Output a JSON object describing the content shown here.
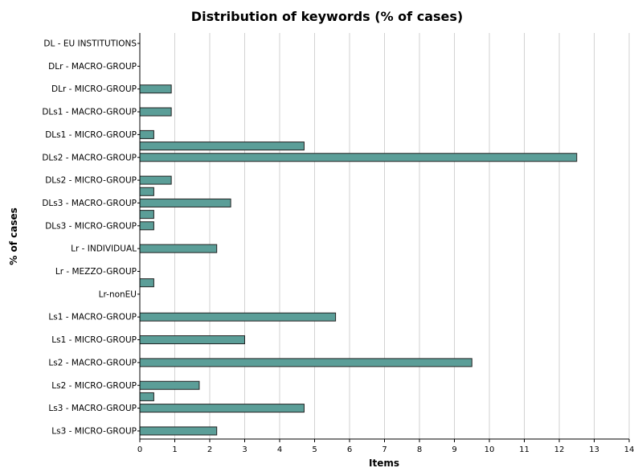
{
  "chart_data": {
    "type": "bar",
    "orientation": "horizontal",
    "title": "Distribution of keywords (% of cases)",
    "xlabel": "Items",
    "ylabel": "% of cases",
    "xlim": [
      0,
      14
    ],
    "xticks": [
      0,
      1,
      2,
      3,
      4,
      5,
      6,
      7,
      8,
      9,
      10,
      11,
      12,
      13,
      14
    ],
    "grid": "vertical",
    "bar_color": "#5b9e98",
    "categories": [
      "DL - EU INSTITUTIONS",
      "DLr - MACRO-GROUP",
      "DLr - MICRO-GROUP",
      "DLs1 - MACRO-GROUP",
      "DLs1 - MICRO-GROUP",
      "DLs2 - MACRO-GROUP",
      "DLs2 - MICRO-GROUP",
      "DLs3 - MACRO-GROUP",
      "DLs3 - MICRO-GROUP",
      "Lr - INDIVIDUAL",
      "Lr - MEZZO-GROUP",
      "Lr-nonEU",
      "Ls1 - MACRO-GROUP",
      "Ls1 - MICRO-GROUP",
      "Ls2 - MACRO-GROUP",
      "Ls2 - MICRO-GROUP",
      "Ls3 - MACRO-GROUP",
      "Ls3 - MICRO-GROUP"
    ],
    "bars": [
      {
        "category": 2,
        "value": 0.9
      },
      {
        "category": 3,
        "value": 0.9
      },
      {
        "category": 4,
        "value": 0.4
      },
      {
        "category": 4.5,
        "value": 4.7
      },
      {
        "category": 5,
        "value": 12.5
      },
      {
        "category": 6,
        "value": 0.9
      },
      {
        "category": 6.5,
        "value": 0.4
      },
      {
        "category": 7,
        "value": 2.6
      },
      {
        "category": 7.5,
        "value": 0.4
      },
      {
        "category": 8,
        "value": 0.4
      },
      {
        "category": 9,
        "value": 2.2
      },
      {
        "category": 10.5,
        "value": 0.4
      },
      {
        "category": 12,
        "value": 5.6
      },
      {
        "category": 13,
        "value": 3.0
      },
      {
        "category": 14,
        "value": 9.5
      },
      {
        "category": 15,
        "value": 1.7
      },
      {
        "category": 15.5,
        "value": 0.4
      },
      {
        "category": 16,
        "value": 4.7
      },
      {
        "category": 17,
        "value": 2.2
      }
    ]
  }
}
